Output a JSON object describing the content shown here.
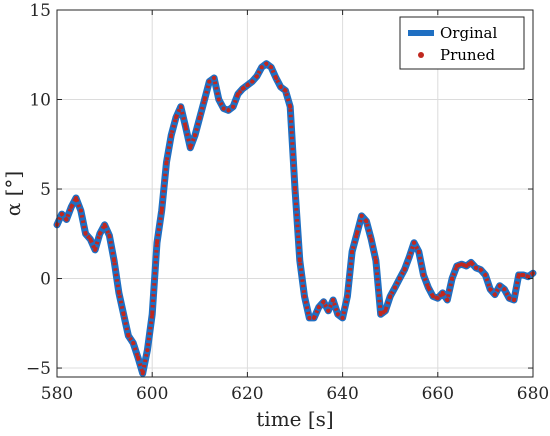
{
  "chart_data": {
    "type": "line",
    "xlabel": "time [s]",
    "ylabel": "α [°]",
    "xlim": [
      580,
      680
    ],
    "ylim": [
      -5.5,
      15
    ],
    "xticks": [
      580,
      600,
      620,
      640,
      660,
      680
    ],
    "yticks": [
      -5,
      0,
      5,
      10,
      15
    ],
    "grid": true,
    "legend_position": "top-right",
    "series": [
      {
        "name": "Orginal",
        "color": "#1f6fc2",
        "style": "thick-line",
        "x": [
          580,
          581,
          582,
          583,
          584,
          585,
          586,
          587,
          588,
          589,
          590,
          591,
          592,
          593,
          594,
          595,
          596,
          597,
          598,
          599,
          600,
          601,
          602,
          603,
          604,
          605,
          606,
          607,
          608,
          609,
          610,
          611,
          612,
          613,
          614,
          615,
          616,
          617,
          618,
          619,
          620,
          621,
          622,
          623,
          624,
          625,
          626,
          627,
          628,
          629,
          630,
          631,
          632,
          633,
          634,
          635,
          636,
          637,
          638,
          639,
          640,
          641,
          642,
          643,
          644,
          645,
          646,
          647,
          648,
          649,
          650,
          651,
          652,
          653,
          654,
          655,
          656,
          657,
          658,
          659,
          660,
          661,
          662,
          663,
          664,
          665,
          666,
          667,
          668,
          669,
          670,
          671,
          672,
          673,
          674,
          675,
          676,
          677,
          678,
          679,
          680
        ],
        "y": [
          3.0,
          3.6,
          3.3,
          4.0,
          4.5,
          3.8,
          2.5,
          2.2,
          1.6,
          2.5,
          3.0,
          2.4,
          1.0,
          -0.8,
          -2.0,
          -3.2,
          -3.6,
          -4.4,
          -5.3,
          -4.0,
          -2.0,
          2.0,
          3.8,
          6.5,
          8.0,
          9.0,
          9.6,
          8.5,
          7.3,
          8.0,
          9.0,
          10.0,
          11.0,
          11.2,
          10.0,
          9.5,
          9.4,
          9.6,
          10.3,
          10.6,
          10.8,
          11.0,
          11.3,
          11.8,
          12.0,
          11.8,
          11.2,
          10.7,
          10.5,
          9.6,
          5.0,
          1.0,
          -1.0,
          -2.2,
          -2.2,
          -1.6,
          -1.3,
          -1.8,
          -1.2,
          -2.0,
          -2.2,
          -1.0,
          1.5,
          2.5,
          3.5,
          3.2,
          2.2,
          1.0,
          -2.0,
          -1.8,
          -1.0,
          -0.5,
          0.0,
          0.5,
          1.2,
          2.0,
          1.5,
          0.2,
          -0.5,
          -1.0,
          -1.1,
          -0.8,
          -1.2,
          0.0,
          0.7,
          0.8,
          0.7,
          0.9,
          0.6,
          0.5,
          0.2,
          -0.6,
          -0.9,
          -0.4,
          -0.6,
          -1.1,
          -1.2,
          0.2,
          0.2,
          0.1,
          0.3
        ]
      },
      {
        "name": "Pruned",
        "color": "#c0281f",
        "style": "dotted-markers",
        "x": [
          580,
          581,
          582,
          583,
          584,
          585,
          586,
          587,
          588,
          589,
          590,
          591,
          592,
          593,
          594,
          595,
          596,
          597,
          598,
          599,
          600,
          601,
          602,
          603,
          604,
          605,
          606,
          607,
          608,
          609,
          610,
          611,
          612,
          613,
          614,
          615,
          616,
          617,
          618,
          619,
          620,
          621,
          622,
          623,
          624,
          625,
          626,
          627,
          628,
          629,
          630,
          631,
          632,
          633,
          634,
          635,
          636,
          637,
          638,
          639,
          640,
          641,
          642,
          643,
          644,
          645,
          646,
          647,
          648,
          649,
          650,
          651,
          652,
          653,
          654,
          655,
          656,
          657,
          658,
          659,
          660,
          661,
          662,
          663,
          664,
          665,
          666,
          667,
          668,
          669,
          670,
          671,
          672,
          673,
          674,
          675,
          676,
          677,
          678,
          679,
          680
        ],
        "y": [
          3.0,
          3.6,
          3.3,
          4.0,
          4.5,
          3.8,
          2.5,
          2.2,
          1.6,
          2.5,
          3.0,
          2.4,
          1.0,
          -0.8,
          -2.0,
          -3.2,
          -3.6,
          -4.4,
          -5.3,
          -4.0,
          -2.0,
          2.0,
          3.8,
          6.5,
          8.0,
          9.0,
          9.6,
          8.5,
          7.3,
          8.0,
          9.0,
          10.0,
          11.0,
          11.2,
          10.0,
          9.5,
          9.4,
          9.6,
          10.3,
          10.6,
          10.8,
          11.0,
          11.3,
          11.8,
          12.0,
          11.8,
          11.2,
          10.7,
          10.5,
          9.6,
          5.0,
          1.0,
          -1.0,
          -2.2,
          -2.2,
          -1.6,
          -1.3,
          -1.8,
          -1.2,
          -2.0,
          -2.2,
          -1.0,
          1.5,
          2.5,
          3.5,
          3.2,
          2.2,
          1.0,
          -2.0,
          -1.8,
          -1.0,
          -0.5,
          0.0,
          0.5,
          1.2,
          2.0,
          1.5,
          0.2,
          -0.5,
          -1.0,
          -1.1,
          -0.8,
          -1.2,
          0.0,
          0.7,
          0.8,
          0.7,
          0.9,
          0.6,
          0.5,
          0.2,
          -0.6,
          -0.9,
          -0.4,
          -0.6,
          -1.1,
          -1.2,
          0.2,
          0.2,
          0.1,
          0.3
        ]
      }
    ]
  }
}
